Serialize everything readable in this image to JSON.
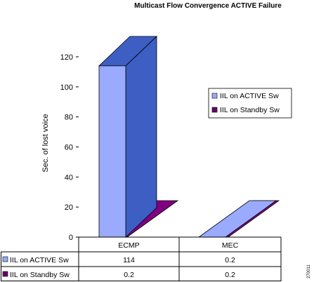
{
  "chart_data": {
    "type": "bar",
    "title": "Multicast Flow Convergence ACTIVE Failure",
    "xlabel": "",
    "ylabel": "Sec. of lost voice",
    "ylim": [
      0,
      120
    ],
    "yticks": [
      0,
      20,
      40,
      60,
      80,
      100,
      120
    ],
    "categories": [
      "ECMP",
      "MEC"
    ],
    "series": [
      {
        "name": "IIL on ACTIVE Sw",
        "values": [
          114,
          0.2
        ],
        "color": "#99AAFF",
        "side_color": "#3D5FC4"
      },
      {
        "name": "IIL on Standby Sw",
        "values": [
          0.2,
          0.2
        ],
        "color": "#660066",
        "side_color": "#800080"
      }
    ],
    "legend_position": "right",
    "grid": false,
    "data_table": true,
    "figure_id": "270011"
  }
}
